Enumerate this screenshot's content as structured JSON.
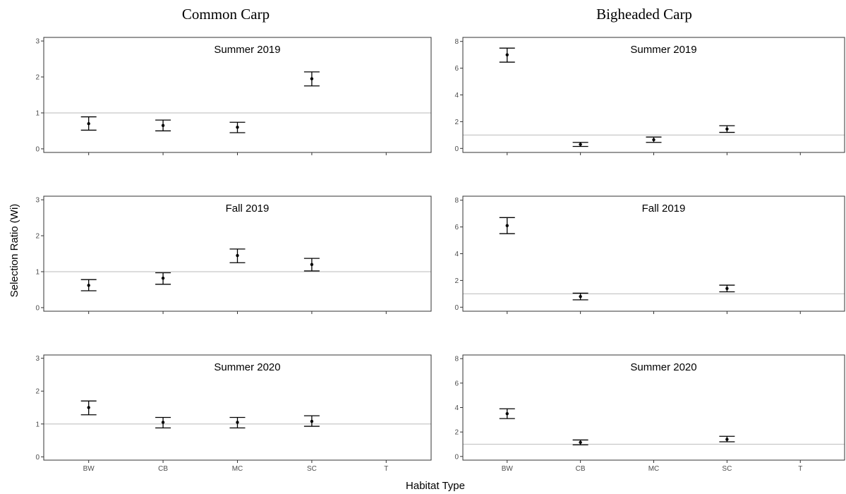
{
  "figure": {
    "column_titles": [
      "Common Carp",
      "Bigheaded Carp"
    ],
    "y_axis_title": "Selection Ratio (Wi)",
    "x_axis_title": "Habitat Type"
  },
  "chart_data": [
    {
      "type": "scatter",
      "species": "Common Carp",
      "title": "Summer 2019",
      "categories": [
        "BW",
        "CB",
        "MC",
        "SC",
        "T"
      ],
      "values": [
        0.7,
        0.65,
        0.6,
        1.95,
        null
      ],
      "error_low": [
        0.52,
        0.5,
        0.45,
        1.75,
        null
      ],
      "error_high": [
        0.89,
        0.8,
        0.74,
        2.14,
        null
      ],
      "ylim": [
        -0.1,
        3.1
      ],
      "yticks": [
        0,
        1,
        2,
        3
      ],
      "reference_line": 1
    },
    {
      "type": "scatter",
      "species": "Bigheaded Carp",
      "title": "Summer 2019",
      "categories": [
        "BW",
        "CB",
        "MC",
        "SC",
        "T"
      ],
      "values": [
        7.0,
        0.3,
        0.65,
        1.45,
        null
      ],
      "error_low": [
        6.45,
        0.15,
        0.45,
        1.2,
        null
      ],
      "error_high": [
        7.5,
        0.45,
        0.85,
        1.7,
        null
      ],
      "ylim": [
        -0.3,
        8.3
      ],
      "yticks": [
        0,
        2,
        4,
        6,
        8
      ],
      "reference_line": 1
    },
    {
      "type": "scatter",
      "species": "Common Carp",
      "title": "Fall 2019",
      "categories": [
        "BW",
        "CB",
        "MC",
        "SC",
        "T"
      ],
      "values": [
        0.62,
        0.82,
        1.45,
        1.2,
        null
      ],
      "error_low": [
        0.47,
        0.65,
        1.25,
        1.02,
        null
      ],
      "error_high": [
        0.78,
        0.97,
        1.63,
        1.37,
        null
      ],
      "ylim": [
        -0.1,
        3.1
      ],
      "yticks": [
        0,
        1,
        2,
        3
      ],
      "reference_line": 1
    },
    {
      "type": "scatter",
      "species": "Bigheaded Carp",
      "title": "Fall 2019",
      "categories": [
        "BW",
        "CB",
        "MC",
        "SC",
        "T"
      ],
      "values": [
        6.1,
        0.8,
        null,
        1.4,
        null
      ],
      "error_low": [
        5.5,
        0.55,
        null,
        1.15,
        null
      ],
      "error_high": [
        6.7,
        1.05,
        null,
        1.65,
        null
      ],
      "ylim": [
        -0.3,
        8.3
      ],
      "yticks": [
        0,
        2,
        4,
        6,
        8
      ],
      "reference_line": 1
    },
    {
      "type": "scatter",
      "species": "Common Carp",
      "title": "Summer 2020",
      "categories": [
        "BW",
        "CB",
        "MC",
        "SC",
        "T"
      ],
      "values": [
        1.5,
        1.05,
        1.05,
        1.08,
        null
      ],
      "error_low": [
        1.28,
        0.88,
        0.88,
        0.93,
        null
      ],
      "error_high": [
        1.7,
        1.2,
        1.2,
        1.25,
        null
      ],
      "ylim": [
        -0.1,
        3.1
      ],
      "yticks": [
        0,
        1,
        2,
        3
      ],
      "reference_line": 1
    },
    {
      "type": "scatter",
      "species": "Bigheaded Carp",
      "title": "Summer 2020",
      "categories": [
        "BW",
        "CB",
        "MC",
        "SC",
        "T"
      ],
      "values": [
        3.5,
        1.15,
        null,
        1.4,
        null
      ],
      "error_low": [
        3.1,
        0.95,
        null,
        1.2,
        null
      ],
      "error_high": [
        3.9,
        1.35,
        null,
        1.65,
        null
      ],
      "ylim": [
        -0.3,
        8.3
      ],
      "yticks": [
        0,
        2,
        4,
        6,
        8
      ],
      "reference_line": 1
    }
  ]
}
